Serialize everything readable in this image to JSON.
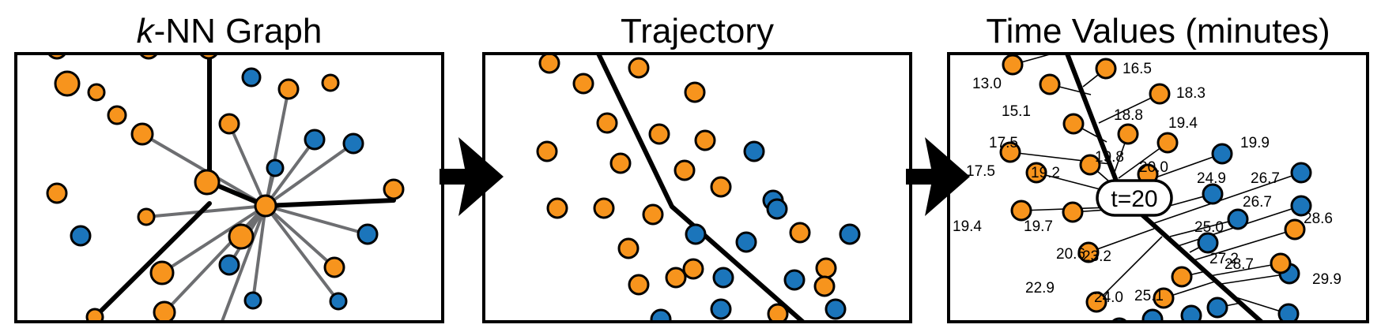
{
  "titles": {
    "panel1_italic": "k",
    "panel1_rest": "-NN Graph",
    "panel2": "Trajectory",
    "panel3": "Time Values (minutes)"
  },
  "colors": {
    "orange": "#F7941D",
    "blue": "#1B75BB",
    "edge": "#6D6E71",
    "line": "#000000"
  },
  "time_marker": "t=20",
  "time_values": [
    "13.0",
    "16.5",
    "15.1",
    "18.3",
    "17.5",
    "18.8",
    "19.4",
    "19.9",
    "17.5",
    "19.2",
    "19.8",
    "20.0",
    "24.9",
    "26.7",
    "19.4",
    "19.7",
    "26.7",
    "28.6",
    "25.0",
    "20.6",
    "23.2",
    "27.2",
    "28.7",
    "22.9",
    "24.0",
    "25.1",
    "29.9"
  ]
}
